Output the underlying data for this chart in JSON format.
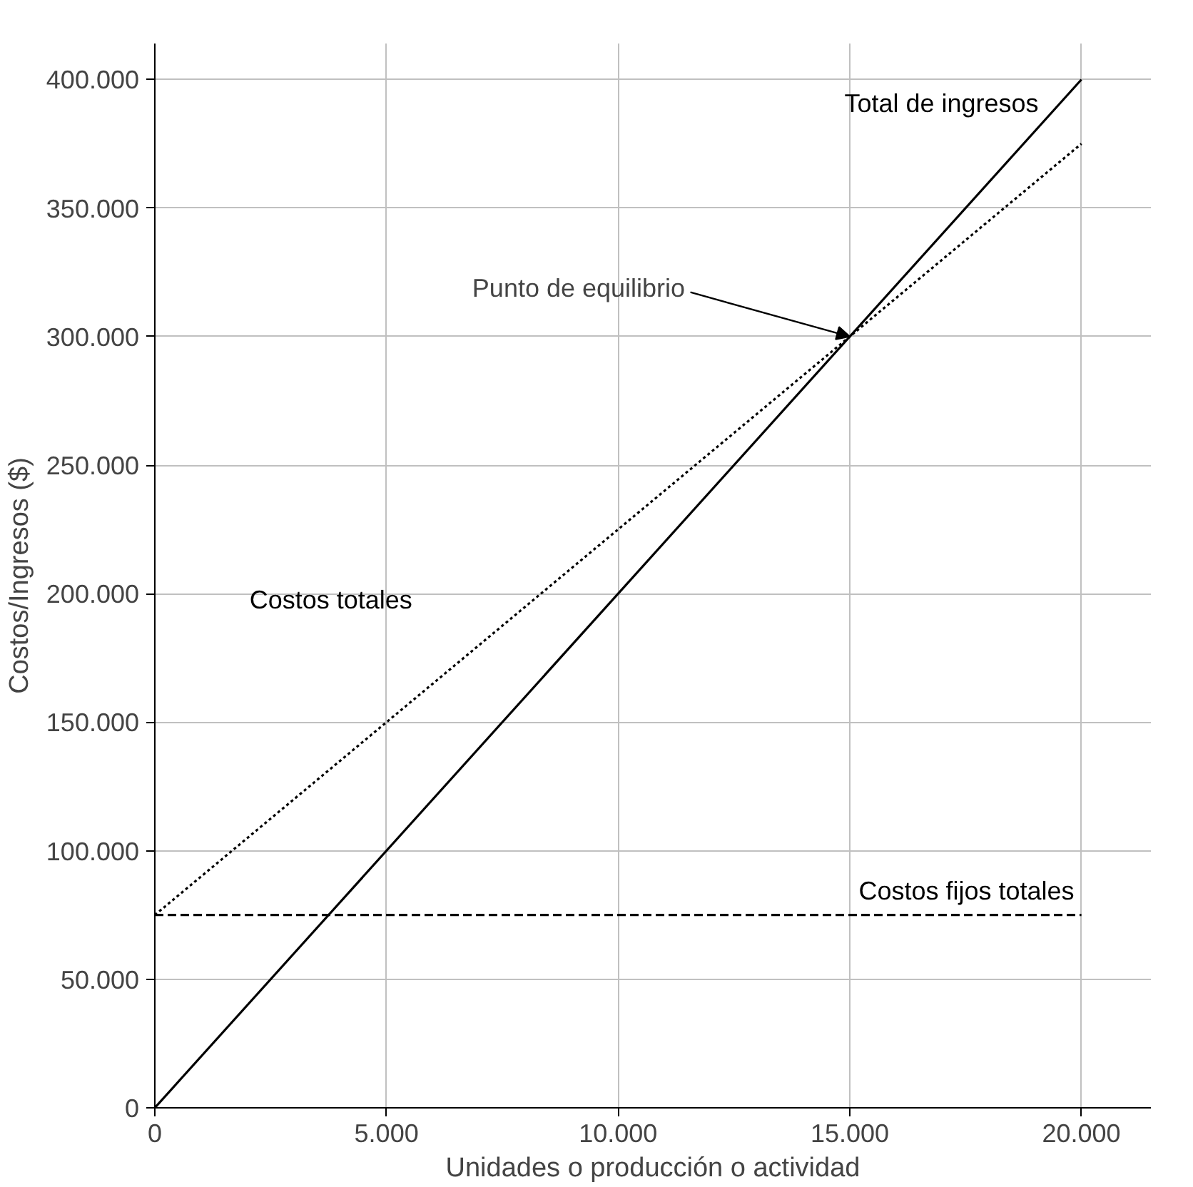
{
  "chart_data": {
    "type": "line",
    "xlabel": "Unidades o producción o actividad",
    "ylabel": "Costos/Ingresos ($)",
    "x": [
      0,
      20000
    ],
    "series": [
      {
        "name": "Total de ingresos",
        "color": "#000000",
        "values": [
          0,
          400000
        ],
        "line_style": "solid"
      },
      {
        "name": "Costos totales",
        "color": "#000000",
        "values": [
          75000,
          375000
        ],
        "line_style": "dotted"
      },
      {
        "name": "Costos fijos totales",
        "color": "#000000",
        "values": [
          75000,
          75000
        ],
        "line_style": "dashed"
      }
    ],
    "annotations": [
      {
        "text": "Punto de equilibrio",
        "x": 15000,
        "y": 300000
      }
    ],
    "xlim": [
      0,
      21500
    ],
    "ylim": [
      0,
      414000
    ],
    "xticks": [
      {
        "value": 0,
        "label": "0"
      },
      {
        "value": 5000,
        "label": "5.000"
      },
      {
        "value": 10000,
        "label": "10.000"
      },
      {
        "value": 15000,
        "label": "15.000"
      },
      {
        "value": 20000,
        "label": "20.000"
      }
    ],
    "yticks": [
      {
        "value": 0,
        "label": "0"
      },
      {
        "value": 50000,
        "label": "50.000"
      },
      {
        "value": 100000,
        "label": "100.000"
      },
      {
        "value": 150000,
        "label": "150.000"
      },
      {
        "value": 200000,
        "label": "200.000"
      },
      {
        "value": 250000,
        "label": "250.000"
      },
      {
        "value": 300000,
        "label": "300.000"
      },
      {
        "value": 350000,
        "label": "350.000"
      },
      {
        "value": 400000,
        "label": "400.000"
      }
    ],
    "grid": true,
    "legend": false,
    "marker": "none"
  }
}
